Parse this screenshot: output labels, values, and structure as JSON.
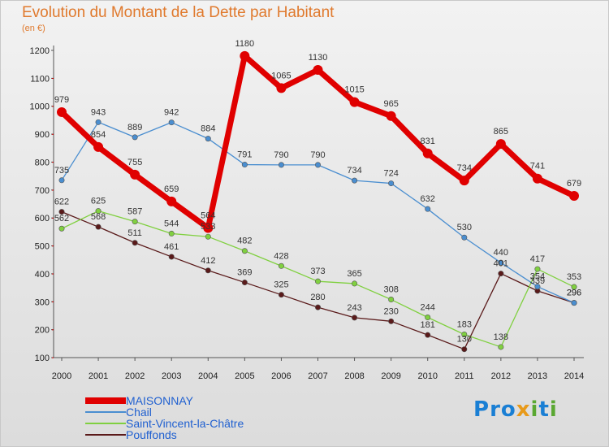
{
  "title": "Evolution du Montant de la Dette par Habitant",
  "unit_label": "(en €)",
  "logo_text": "Proxiti",
  "chart_data": {
    "type": "line",
    "title": "Evolution du Montant de la Dette par Habitant",
    "subtitle": "(en €)",
    "x": [
      "2000",
      "2001",
      "2002",
      "2003",
      "2004",
      "2005",
      "2006",
      "2007",
      "2008",
      "2009",
      "2010",
      "2011",
      "2012",
      "2013",
      "2014"
    ],
    "ylim": [
      100,
      1200
    ],
    "yticks": [
      100,
      200,
      300,
      400,
      500,
      600,
      700,
      800,
      900,
      1000,
      1100,
      1200
    ],
    "grid": false,
    "legend_position": "bottom",
    "series": [
      {
        "name": "MAISONNAY",
        "color": "#e00000",
        "values": [
          979,
          854,
          755,
          659,
          564,
          1180,
          1065,
          1130,
          1015,
          965,
          831,
          734,
          865,
          741,
          679
        ]
      },
      {
        "name": "Chail",
        "color": "#4a8ed0",
        "values": [
          735,
          943,
          889,
          942,
          884,
          791,
          790,
          790,
          734,
          724,
          632,
          530,
          440,
          354,
          296
        ]
      },
      {
        "name": "Saint-Vincent-la-Châtre",
        "color": "#80d040",
        "values": [
          562,
          625,
          587,
          544,
          533,
          482,
          428,
          373,
          365,
          308,
          244,
          183,
          138,
          417,
          353
        ]
      },
      {
        "name": "Pouffonds",
        "color": "#5a1a1a",
        "values": [
          622,
          568,
          511,
          461,
          412,
          369,
          325,
          280,
          243,
          230,
          181,
          130,
          401,
          339,
          296
        ]
      }
    ],
    "data_labels": [
      [
        "979",
        "854",
        "755",
        "659",
        "564",
        "1180",
        "1065",
        "1130",
        "1015",
        "965",
        "831",
        "734",
        "865",
        "741",
        "679"
      ],
      [
        "735",
        "943",
        "889",
        "942",
        "884",
        "791",
        "790",
        "790",
        "734",
        "724",
        "632",
        "530",
        "440",
        "354",
        "296"
      ],
      [
        "562",
        "625",
        "587",
        "544",
        "533",
        "482",
        "428",
        "373",
        "365",
        "308",
        "244",
        "183",
        "138",
        "417",
        "353"
      ],
      [
        "622",
        "568",
        "511",
        "461",
        "412",
        "369",
        "325",
        "280",
        "243",
        "230",
        "181",
        "130",
        "401",
        "339",
        "296"
      ]
    ]
  }
}
